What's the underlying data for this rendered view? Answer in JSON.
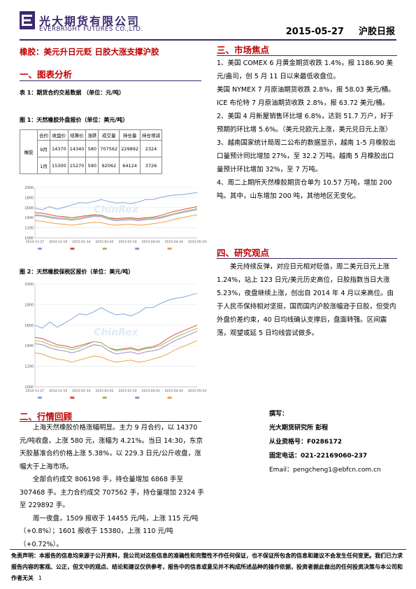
{
  "header": {
    "company_cn": "光大期货有限公司",
    "company_en": "EVERBRIGHT FUTURES CO.,LTD.",
    "date": "2015-05-27",
    "report_name": "沪胶日报"
  },
  "headline": "橡胶：美元升日元贬 日胶大涨支撑沪胶",
  "section1": {
    "title": "一、图表分析",
    "table1_title": "表 1：期货合约交易数据 （单位：元/吨）",
    "fig1_title": "图 1：天然橡胶外盘报价（单位：美元/吨）",
    "fig2_title": "图 2：天然橡胶保税区报价（单位：美元/吨）",
    "table": {
      "headers": [
        "合约",
        "收盘价",
        "结算价",
        "涨跌",
        "成交量",
        "持仓量",
        "持仓增减"
      ],
      "product": "橡胶",
      "rows": [
        [
          "9月",
          "14370",
          "14340",
          "580",
          "707562",
          "229892",
          "2324"
        ],
        [
          "1月",
          "15300",
          "15270",
          "590",
          "92062",
          "64124",
          "3726"
        ]
      ]
    }
  },
  "chart_data": [
    {
      "type": "line",
      "x_ticks": [
        "2014-11-27",
        "2014-12-19",
        "2015-01-14",
        "2015-02-05",
        "2015-03-10",
        "2015-04-01",
        "2015-04-24",
        "2015-05-19"
      ],
      "y_ticks": [
        "1000",
        "1200",
        "1400",
        "1600",
        "1800",
        "2000"
      ],
      "ylim": [
        1000,
        2000
      ],
      "watermark": "ChinRex",
      "legend": [
        "",
        "",
        "",
        "",
        ""
      ],
      "series": [
        {
          "color": "#7fa7d6",
          "values": [
            1590,
            1560,
            1620,
            1570,
            1610,
            1650,
            1700,
            1690,
            1720,
            1760,
            1720,
            1690,
            1700,
            1680,
            1710,
            1760,
            1760,
            1800,
            1830,
            1850,
            1860,
            1880,
            1900
          ]
        },
        {
          "color": "#e04a4a",
          "values": [
            1500,
            1490,
            1460,
            1430,
            1420,
            1400,
            1420,
            1440,
            1460,
            1450,
            1400,
            1380,
            1390,
            1400,
            1380,
            1400,
            1410,
            1440,
            1490,
            1530,
            1560,
            1590,
            1620
          ]
        },
        {
          "color": "#90c35a",
          "values": [
            1460,
            1450,
            1420,
            1400,
            1390,
            1370,
            1390,
            1420,
            1450,
            1440,
            1390,
            1360,
            1370,
            1380,
            1360,
            1380,
            1390,
            1410,
            1450,
            1490,
            1520,
            1550,
            1580
          ]
        },
        {
          "color": "#a18bc9",
          "values": [
            1440,
            1430,
            1400,
            1380,
            1370,
            1350,
            1370,
            1400,
            1430,
            1420,
            1370,
            1340,
            1350,
            1360,
            1340,
            1360,
            1370,
            1390,
            1430,
            1470,
            1500,
            1530,
            1560
          ]
        },
        {
          "color": "#f0a040",
          "values": [
            1340,
            1330,
            1300,
            1280,
            1270,
            1250,
            1270,
            1290,
            1310,
            1300,
            1270,
            1250,
            1260,
            1270,
            1250,
            1260,
            1280,
            1300,
            1330,
            1370,
            1400,
            1430,
            1460
          ]
        }
      ]
    },
    {
      "type": "line",
      "x_ticks": [
        "2014-11-27",
        "2014-12-19",
        "2015-01-14",
        "2015-02-05",
        "2015-03-10",
        "2015-04-01",
        "2015-04-24",
        "2015-05-19"
      ],
      "y_ticks": [
        "1000",
        "1200",
        "1400",
        "1600",
        "1800",
        "2000"
      ],
      "ylim": [
        1000,
        2000
      ],
      "watermark": "ChinRex",
      "legend": [
        "",
        "",
        "",
        "",
        ""
      ],
      "series": [
        {
          "color": "#7fa7d6",
          "values": [
            1600,
            1570,
            1630,
            1580,
            1620,
            1660,
            1710,
            1700,
            1730,
            1770,
            1730,
            1700,
            1710,
            1690,
            1720,
            1770,
            1770,
            1810,
            1840,
            1860,
            1870,
            1890,
            1910
          ]
        },
        {
          "color": "#e04a4a",
          "values": [
            1480,
            1470,
            1440,
            1410,
            1400,
            1380,
            1400,
            1420,
            1440,
            1430,
            1380,
            1360,
            1370,
            1380,
            1360,
            1380,
            1390,
            1420,
            1470,
            1510,
            1540,
            1570,
            1600
          ]
        },
        {
          "color": "#90c35a",
          "values": [
            1450,
            1440,
            1410,
            1390,
            1380,
            1360,
            1380,
            1410,
            1440,
            1430,
            1380,
            1350,
            1360,
            1370,
            1350,
            1370,
            1380,
            1400,
            1440,
            1480,
            1510,
            1540,
            1570
          ]
        },
        {
          "color": "#a18bc9",
          "values": [
            1420,
            1410,
            1380,
            1360,
            1350,
            1330,
            1350,
            1380,
            1410,
            1400,
            1350,
            1320,
            1330,
            1340,
            1320,
            1340,
            1350,
            1370,
            1410,
            1450,
            1480,
            1510,
            1540
          ]
        },
        {
          "color": "#f0a040",
          "values": [
            1330,
            1320,
            1290,
            1270,
            1260,
            1240,
            1260,
            1280,
            1300,
            1290,
            1260,
            1240,
            1250,
            1260,
            1240,
            1250,
            1270,
            1290,
            1320,
            1360,
            1390,
            1420,
            1450
          ]
        }
      ]
    }
  ],
  "section2": {
    "title": "二、行情回顾",
    "paras": [
      "上海天然橡胶价格涨幅明显。主力 9 月合约，以 14370 元/吨收盘，上涨 580 元，涨幅为 4.21%。当日 14:30，东京天胶基准合约价格上涨 5.38%，以 229.3 日元/公斤收盘，涨幅大于上海市场。",
      "全部合约成交 806198 手，持仓量增加 6868 手至 307468 手。主力合约成交 707562 手，持仓量增加 2324 手至 229892 手。",
      "周一夜盘，1509 报收于 14455 元/吨，上涨 115 元/吨（+0.8%）；1601 报收于 15380，上涨 110 元/吨（+0.72%）。"
    ]
  },
  "section3": {
    "title": "三、市场焦点",
    "paras": [
      "1、美国 COMEX 6 月黄金期货收跌 1.4%，报 1186.90 美元/盎司，创 5 月 11 日以来最低收盘位。",
      "美国 NYMEX 7 月原油期货收跌 2.8%，报 58.03 美元/桶。ICE 布伦特 7 月原油期货收跌 2.8%，报 63.72 美元/桶。",
      "2、美国 4 月新屋销售环比增 6.8%，达到 51.7 万户，好于预期的环比增 5.6%。（美元兑欧元上涨，美元兑日元上涨）",
      "3、越南国家统计局周二公布的数据显示，越南 1-5 月橡胶出口量预计同比增加 27%，至 32.2 万吨。越南 5 月橡胶出口量预计环比增加 32%，至 7 万吨。",
      "4、周二上期所天然橡胶期货仓单为 10.57 万吨，增加 200 吨。其中，山东增加 200 吨，其他地区无变化。"
    ]
  },
  "section4": {
    "title": "四、研究观点",
    "para": "美元持续反弹，对应日元相对贬值，周二美元日元上涨 1.24%，站上 123 日元/美元历史高位，日胶指数当日大涨 5.23%，夜盘继续上涨，创出自 2014 年 4 月以来高位。由于人民币保持相对坚挺，国而国内沪胶涨幅逊于日胶，但受内外盘价差约束，40 日均线确认支撑后，盘面转强。区间震荡，观望或延 5 日均线尝试做多。"
  },
  "author": {
    "label": "撰写：",
    "name": "光大期货研究所 彭程",
    "license": "从业资格号：F0286172",
    "phone": "固定电话：021-22169060-237",
    "email": "Email：pengcheng1@ebfcn.com.cn"
  },
  "footer": {
    "disclaimer": "免责声明：本报告的信息均来源于公开资料，我公司对这些信息的准确性和完整性不作任何保证，也不保证所包含的信息和建议不会发生任何变更。我们已力求报告内容的客观、公正，但文中的观点、结论和建议仅供参考，报告中的信息或意见并不构成所述品种的操作依据，投资者据此做出的任何投资决策与本公司和作者无关",
    "page": "1"
  }
}
